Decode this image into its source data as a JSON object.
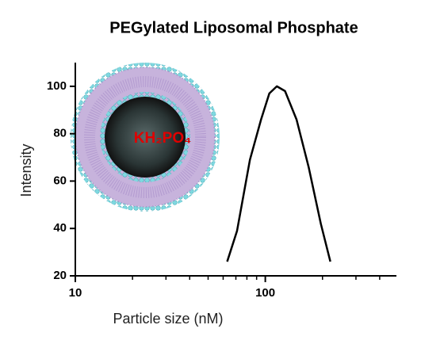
{
  "chart_data": {
    "type": "line",
    "title": "PEGylated Liposomal Phosphate",
    "xlabel": "Particle size (nM)",
    "ylabel": "Intensity",
    "annotation": "KH₂PO₄",
    "xscale": "log",
    "x": [
      63,
      71,
      83,
      95,
      105,
      115,
      127,
      146,
      169,
      196,
      220
    ],
    "series": [
      {
        "name": "Intensity",
        "color": "#000000",
        "values": [
          26,
          39,
          69,
          86,
          97,
          100,
          98,
          86,
          66,
          42,
          26
        ]
      }
    ],
    "xlim": [
      10,
      490
    ],
    "xticks": [
      10,
      100
    ],
    "xminorticks": [
      20,
      30,
      40,
      50,
      60,
      70,
      80,
      90,
      200,
      300,
      400
    ],
    "ylim": [
      20,
      110
    ],
    "yticks": [
      20,
      40,
      60,
      80,
      100
    ]
  }
}
